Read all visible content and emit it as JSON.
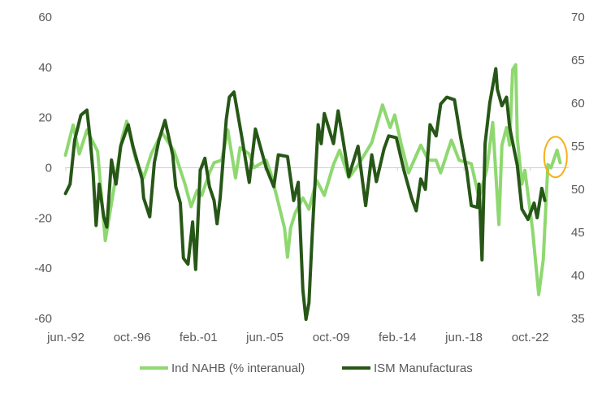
{
  "chart_data": {
    "type": "line",
    "title": "",
    "xlabel": "",
    "ylabel_left": "",
    "ylabel_right": "",
    "x_ticks": [
      {
        "label": "jun.-92",
        "x": 1992.42
      },
      {
        "label": "oct.-96",
        "x": 1996.75
      },
      {
        "label": "feb.-01",
        "x": 2001.08
      },
      {
        "label": "jun.-05",
        "x": 2005.42
      },
      {
        "label": "oct.-09",
        "x": 2009.75
      },
      {
        "label": "feb.-14",
        "x": 2014.08
      },
      {
        "label": "jun.-18",
        "x": 2018.42
      },
      {
        "label": "oct.-22",
        "x": 2022.75
      }
    ],
    "ylim_left": [
      -60,
      60
    ],
    "yticks_left": [
      "60",
      "40",
      "20",
      "0",
      "-20",
      "-40",
      "-60"
    ],
    "ylim_right": [
      35,
      70
    ],
    "yticks_right": [
      "70",
      "65",
      "60",
      "55",
      "50",
      "45",
      "40",
      "35"
    ],
    "grid": false,
    "zero_line": true,
    "legend_position": "bottom",
    "series": [
      {
        "name": "Ind NAHB (% interanual)",
        "axis": "left",
        "color": "#8ed870",
        "points": [
          [
            1992.4,
            5
          ],
          [
            1992.9,
            17
          ],
          [
            1993.3,
            5.5
          ],
          [
            1993.8,
            15
          ],
          [
            1994.5,
            6.5
          ],
          [
            1995.0,
            -29
          ],
          [
            1995.6,
            -7
          ],
          [
            1996.1,
            12
          ],
          [
            1996.4,
            18.5
          ],
          [
            1997.0,
            3
          ],
          [
            1997.5,
            -4
          ],
          [
            1998.0,
            5.5
          ],
          [
            1998.7,
            14
          ],
          [
            1999.5,
            6.5
          ],
          [
            2000.2,
            -6.5
          ],
          [
            2000.6,
            -15.5
          ],
          [
            2001.0,
            -9
          ],
          [
            2001.3,
            -11
          ],
          [
            2001.8,
            -2
          ],
          [
            2002.1,
            2
          ],
          [
            2002.6,
            3
          ],
          [
            2003.0,
            15
          ],
          [
            2003.5,
            -4
          ],
          [
            2003.8,
            8
          ],
          [
            2004.4,
            5.5
          ],
          [
            2004.7,
            0
          ],
          [
            2005.5,
            3
          ],
          [
            2005.8,
            -2
          ],
          [
            2006.3,
            -14
          ],
          [
            2006.7,
            -24
          ],
          [
            2006.9,
            -35.6
          ],
          [
            2007.1,
            -24
          ],
          [
            2007.4,
            -18
          ],
          [
            2007.9,
            -12
          ],
          [
            2008.3,
            -16.5
          ],
          [
            2008.8,
            -5
          ],
          [
            2009.3,
            -11
          ],
          [
            2009.9,
            1.3
          ],
          [
            2010.3,
            7
          ],
          [
            2010.9,
            -4
          ],
          [
            2011.5,
            1
          ],
          [
            2012.4,
            10
          ],
          [
            2013.1,
            25
          ],
          [
            2013.6,
            16
          ],
          [
            2013.9,
            21
          ],
          [
            2014.3,
            10
          ],
          [
            2014.8,
            -2
          ],
          [
            2015.6,
            9
          ],
          [
            2016.1,
            3
          ],
          [
            2016.6,
            3
          ],
          [
            2016.9,
            -2
          ],
          [
            2017.6,
            11
          ],
          [
            2018.1,
            3
          ],
          [
            2018.9,
            1.6
          ],
          [
            2019.4,
            -12
          ],
          [
            2019.9,
            -1
          ],
          [
            2020.3,
            18
          ],
          [
            2020.7,
            -22.6
          ],
          [
            2020.9,
            9
          ],
          [
            2021.2,
            16
          ],
          [
            2021.4,
            9
          ],
          [
            2021.6,
            39
          ],
          [
            2021.8,
            41
          ],
          [
            2021.9,
            12
          ],
          [
            2022.2,
            -6.5
          ],
          [
            2022.4,
            -1
          ],
          [
            2022.9,
            -24.6
          ],
          [
            2023.3,
            -50.5
          ],
          [
            2023.6,
            -36.6
          ],
          [
            2023.9,
            1.3
          ],
          [
            2024.1,
            0
          ],
          [
            2024.5,
            7
          ],
          [
            2024.7,
            2
          ]
        ]
      },
      {
        "name": "ISM Manufacturas",
        "axis": "right",
        "color": "#275717",
        "points": [
          [
            1992.4,
            49.5
          ],
          [
            1992.7,
            50.6
          ],
          [
            1993.0,
            55.7
          ],
          [
            1993.4,
            58.6
          ],
          [
            1993.8,
            59.2
          ],
          [
            1994.0,
            56
          ],
          [
            1994.2,
            51.9
          ],
          [
            1994.4,
            45.8
          ],
          [
            1994.6,
            50.6
          ],
          [
            1994.9,
            46.8
          ],
          [
            1995.1,
            45.6
          ],
          [
            1995.4,
            53.4
          ],
          [
            1995.7,
            50.6
          ],
          [
            1996.0,
            55
          ],
          [
            1996.5,
            57.5
          ],
          [
            1996.8,
            55
          ],
          [
            1997.4,
            51.2
          ],
          [
            1997.5,
            49
          ],
          [
            1997.9,
            46.8
          ],
          [
            1998.2,
            53.1
          ],
          [
            1998.5,
            55.7
          ],
          [
            1998.9,
            58
          ],
          [
            1999.4,
            54
          ],
          [
            1999.6,
            50.3
          ],
          [
            1999.9,
            48.4
          ],
          [
            2000.1,
            42
          ],
          [
            2000.4,
            41.3
          ],
          [
            2000.7,
            46.2
          ],
          [
            2000.9,
            40.7
          ],
          [
            2001.2,
            52.2
          ],
          [
            2001.5,
            53.6
          ],
          [
            2001.8,
            50.3
          ],
          [
            2002.1,
            48.7
          ],
          [
            2002.3,
            46
          ],
          [
            2002.5,
            49
          ],
          [
            2002.9,
            58.1
          ],
          [
            2003.1,
            60.7
          ],
          [
            2003.4,
            61.3
          ],
          [
            2003.9,
            56.2
          ],
          [
            2004.4,
            50.8
          ],
          [
            2004.8,
            57
          ],
          [
            2005.5,
            52.5
          ],
          [
            2006.0,
            50.3
          ],
          [
            2006.3,
            54
          ],
          [
            2006.9,
            53.8
          ],
          [
            2007.3,
            48.7
          ],
          [
            2007.6,
            50.8
          ],
          [
            2007.9,
            38.3
          ],
          [
            2008.1,
            34.9
          ],
          [
            2008.3,
            36.8
          ],
          [
            2008.5,
            44.3
          ],
          [
            2008.9,
            57.5
          ],
          [
            2009.1,
            55.3
          ],
          [
            2009.3,
            58.8
          ],
          [
            2009.9,
            55.3
          ],
          [
            2010.2,
            59.1
          ],
          [
            2010.5,
            56
          ],
          [
            2010.9,
            51.5
          ],
          [
            2011.5,
            55
          ],
          [
            2012.0,
            48.1
          ],
          [
            2012.4,
            54
          ],
          [
            2012.7,
            50.9
          ],
          [
            2013.2,
            54.7
          ],
          [
            2013.5,
            56.2
          ],
          [
            2014.0,
            56
          ],
          [
            2014.5,
            52.2
          ],
          [
            2015.0,
            49
          ],
          [
            2015.3,
            47.5
          ],
          [
            2015.6,
            51.2
          ],
          [
            2015.9,
            50
          ],
          [
            2016.2,
            57.5
          ],
          [
            2016.6,
            56.2
          ],
          [
            2016.9,
            59.9
          ],
          [
            2017.3,
            60.7
          ],
          [
            2017.8,
            60.4
          ],
          [
            2018.2,
            56
          ],
          [
            2018.6,
            52.2
          ],
          [
            2018.9,
            48.1
          ],
          [
            2019.3,
            47.9
          ],
          [
            2019.4,
            50.6
          ],
          [
            2019.6,
            41.8
          ],
          [
            2019.8,
            55.3
          ],
          [
            2020.1,
            60
          ],
          [
            2020.5,
            64
          ],
          [
            2020.6,
            61.6
          ],
          [
            2020.9,
            59.7
          ],
          [
            2021.2,
            60.7
          ],
          [
            2021.4,
            57.2
          ],
          [
            2021.9,
            52.8
          ],
          [
            2022.2,
            47.7
          ],
          [
            2022.6,
            46.5
          ],
          [
            2023.0,
            48.4
          ],
          [
            2023.2,
            46.7
          ],
          [
            2023.5,
            50.1
          ],
          [
            2023.7,
            48.7
          ]
        ]
      }
    ],
    "annotation": {
      "type": "ellipse",
      "color": "#f7b01a",
      "x": 2024.4,
      "y_left": 4.3
    }
  }
}
